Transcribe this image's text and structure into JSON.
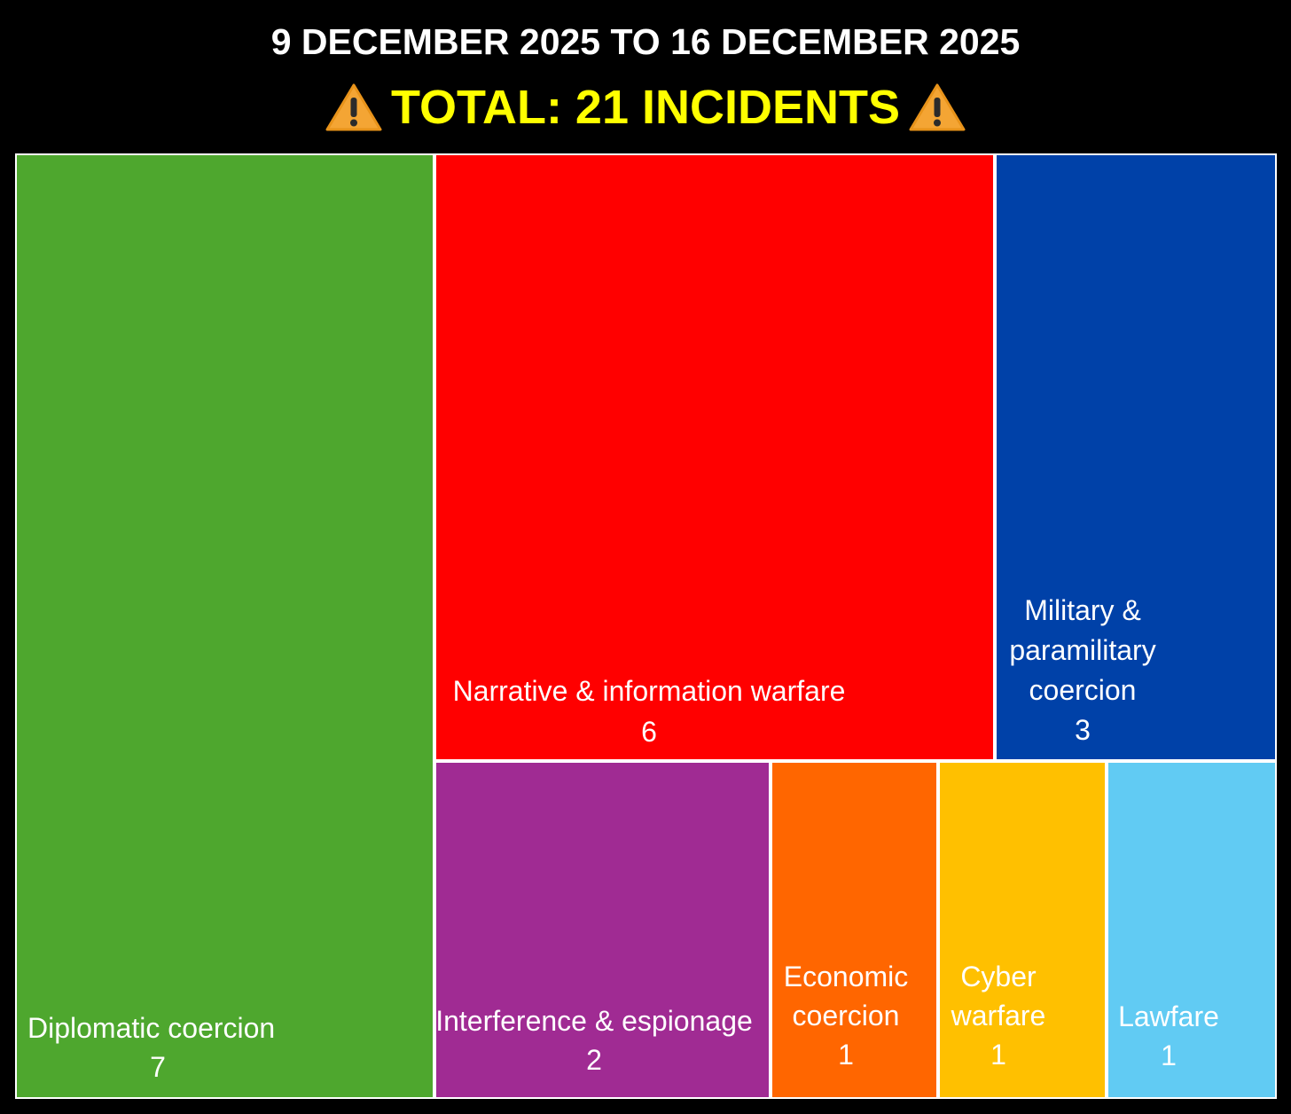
{
  "header": {
    "date_range": "9 DECEMBER 2025 TO 16 DECEMBER 2025",
    "total": "TOTAL: 21 INCIDENTS",
    "total_icon": "warning-icon"
  },
  "chart_data": {
    "type": "treemap",
    "title": "TOTAL: 21 INCIDENTS",
    "subtitle": "9 DECEMBER 2025 TO 16 DECEMBER 2025",
    "total": 21,
    "categories": [
      {
        "id": "diplomatic",
        "label_lines": [
          "Diplomatic coercion"
        ],
        "value": 7,
        "color": "#4ea72e"
      },
      {
        "id": "narrative",
        "label_lines": [
          "Narrative & information warfare"
        ],
        "value": 6,
        "color": "#ff0000"
      },
      {
        "id": "military",
        "label_lines": [
          "Military &",
          "paramilitary",
          "coercion"
        ],
        "value": 3,
        "color": "#0041a8"
      },
      {
        "id": "interference",
        "label_lines": [
          "Interference & espionage"
        ],
        "value": 2,
        "color": "#a02b93"
      },
      {
        "id": "economic",
        "label_lines": [
          "Economic",
          "coercion"
        ],
        "value": 1,
        "color": "#ff6600"
      },
      {
        "id": "cyber",
        "label_lines": [
          "Cyber",
          "warfare"
        ],
        "value": 1,
        "color": "#ffc000"
      },
      {
        "id": "lawfare",
        "label_lines": [
          "Lawfare"
        ],
        "value": 1,
        "color": "#61cbf3"
      }
    ]
  }
}
